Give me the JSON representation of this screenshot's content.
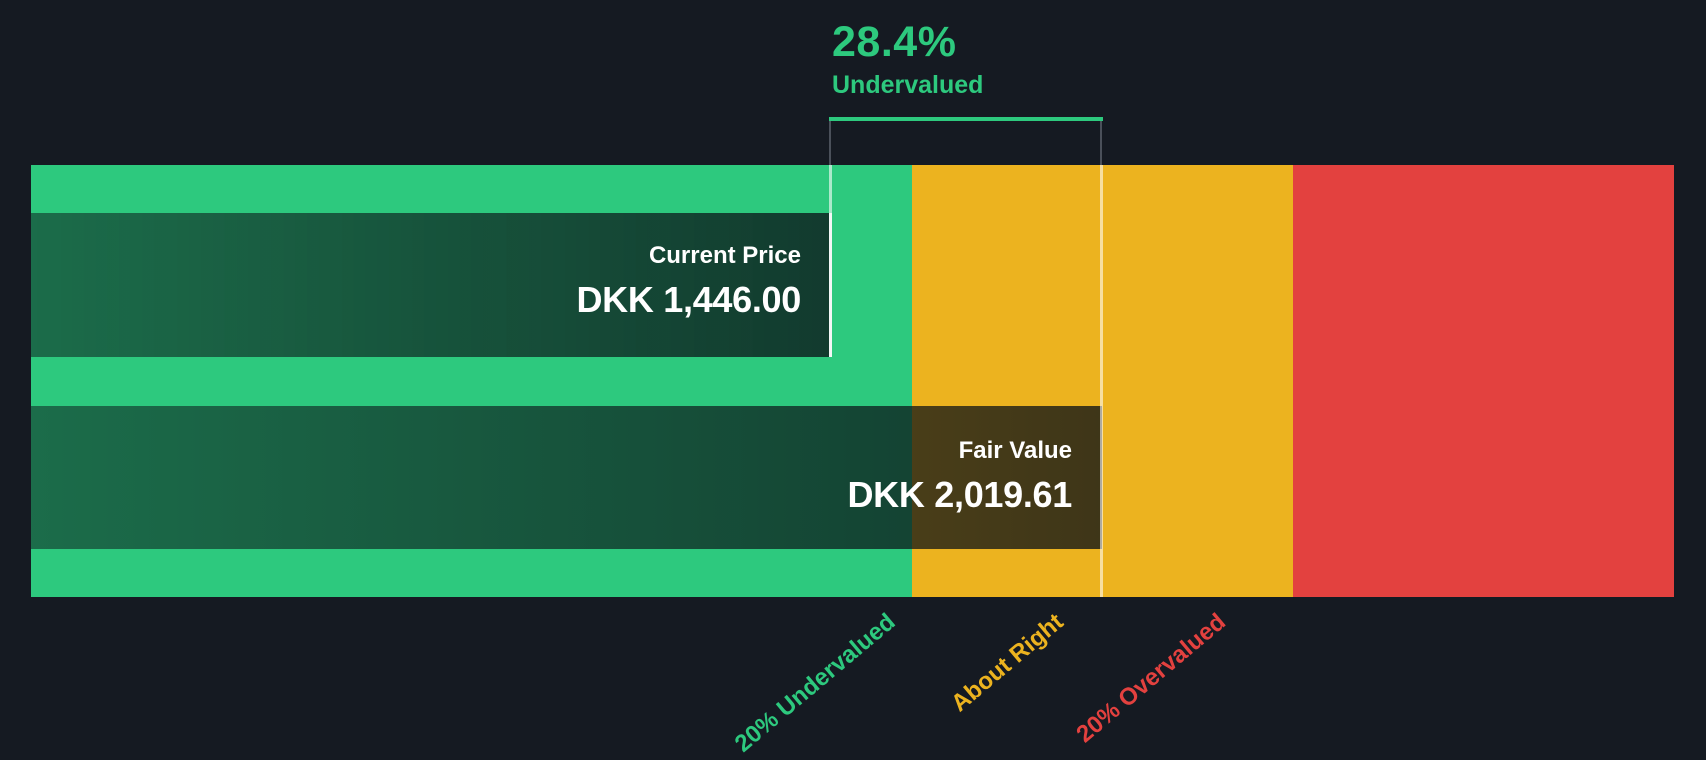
{
  "header": {
    "discount_percent": "28.4%",
    "discount_status": "Undervalued"
  },
  "bars": {
    "current_price": {
      "label": "Current Price",
      "value": "DKK 1,446.00"
    },
    "fair_value": {
      "label": "Fair Value",
      "value": "DKK 2,019.61"
    }
  },
  "axis_labels": {
    "undervalued": "20% Undervalued",
    "about_right": "About Right",
    "overvalued": "20% Overvalued"
  },
  "colors": {
    "background": "#151a22",
    "undervalued_green": "#2dc97e",
    "about_right_amber": "#ecb31f",
    "overvalued_red": "#e3413f",
    "bar_text": "#ffffff",
    "annotation_text": "#2dc97e"
  },
  "chart_data": {
    "type": "bar",
    "title": "Share Price vs Fair Value",
    "annotation": "28.4% Undervalued",
    "currency": "DKK",
    "discount_percent": 28.4,
    "series": [
      {
        "name": "Current Price",
        "value": 1446.0
      },
      {
        "name": "Fair Value",
        "value": 2019.61
      }
    ],
    "zones": [
      {
        "label": "20% Undervalued",
        "color": "#2dc97e",
        "fair_value_ratio_range": [
          0,
          0.8
        ]
      },
      {
        "label": "About Right",
        "color": "#ecb31f",
        "fair_value_ratio_range": [
          0.8,
          1.2
        ]
      },
      {
        "label": "20% Overvalued",
        "color": "#e3413f",
        "fair_value_ratio_range": [
          1.2,
          1.53
        ]
      }
    ],
    "grid": false,
    "legend_position": "none",
    "orientation": "horizontal"
  }
}
